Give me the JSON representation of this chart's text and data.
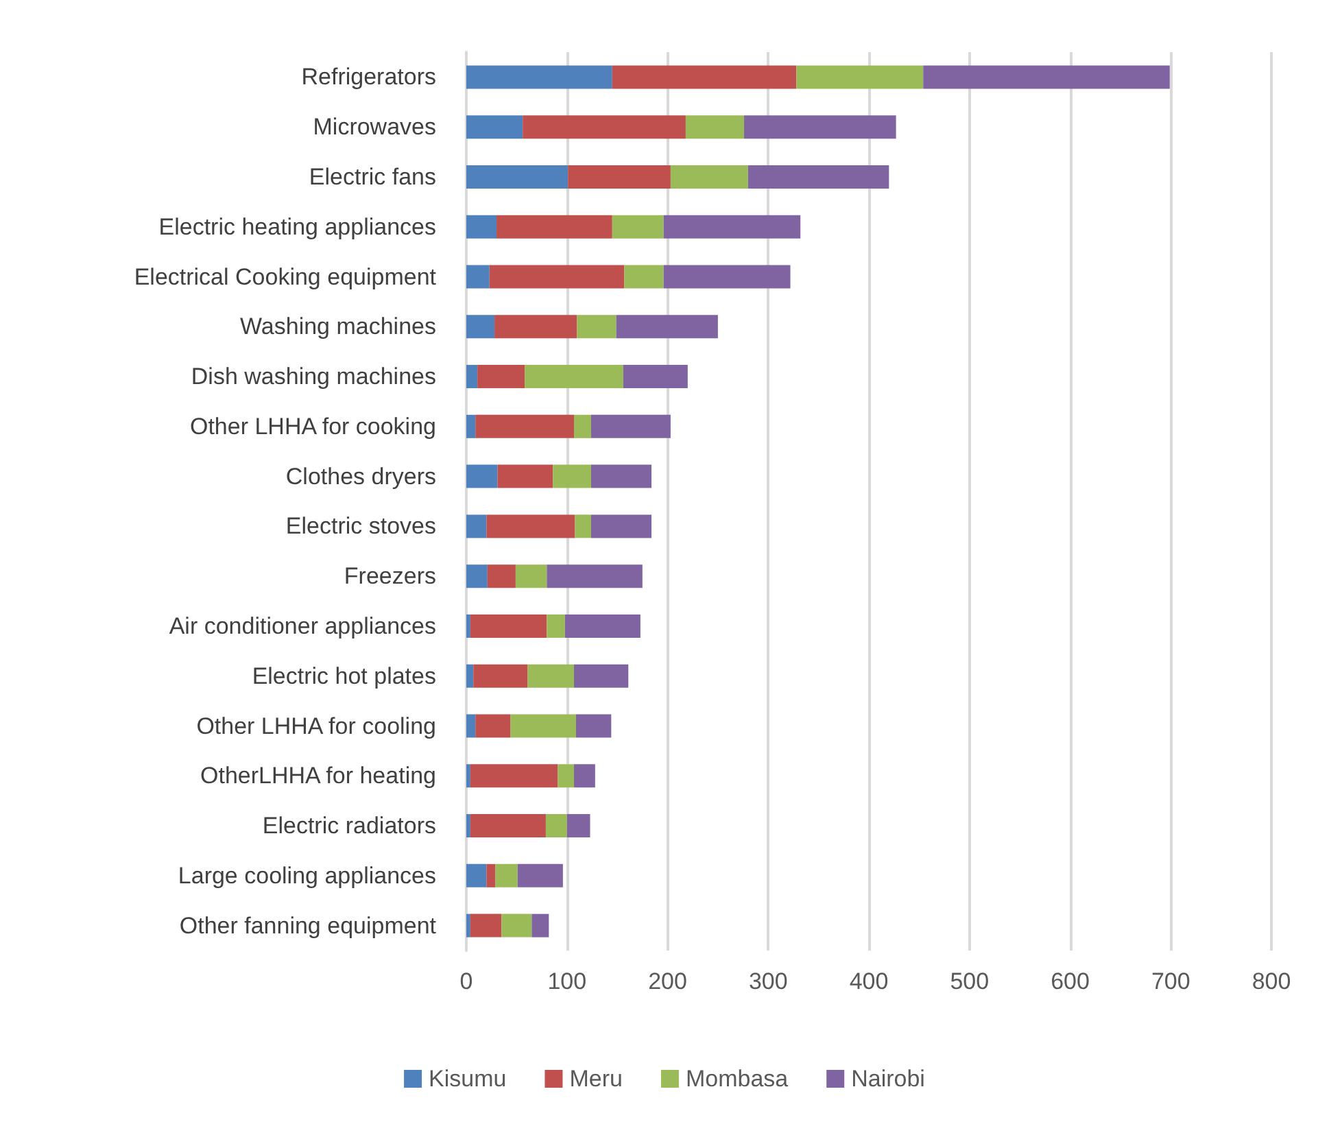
{
  "chart_data": {
    "type": "bar",
    "orientation": "horizontal",
    "stacked": true,
    "categories": [
      "Refrigerators",
      "Microwaves",
      "Electric fans",
      "Electric heating appliances",
      "Electrical Cooking equipment",
      "Washing machines",
      "Dish washing machines",
      "Other LHHA for cooking",
      "Clothes dryers",
      "Electric stoves",
      "Freezers",
      "Air conditioner appliances",
      "Electric hot plates",
      "Other LHHA for cooling",
      "OtherLHHA for heating",
      "Electric radiators",
      "Large cooling appliances",
      "Other fanning equipment"
    ],
    "series": [
      {
        "name": "Kisumu",
        "color": "#4f81bd",
        "values": [
          145,
          56,
          101,
          30,
          23,
          28,
          11,
          9,
          31,
          20,
          21,
          4,
          7,
          9,
          4,
          4,
          20,
          4
        ]
      },
      {
        "name": "Meru",
        "color": "#c0504d",
        "values": [
          183,
          162,
          102,
          115,
          134,
          82,
          47,
          98,
          55,
          88,
          28,
          76,
          54,
          35,
          87,
          75,
          9,
          31
        ]
      },
      {
        "name": "Mombasa",
        "color": "#9bbb59",
        "values": [
          126,
          58,
          77,
          51,
          39,
          39,
          98,
          17,
          38,
          16,
          31,
          18,
          46,
          65,
          16,
          21,
          22,
          30
        ]
      },
      {
        "name": "Nairobi",
        "color": "#8064a2",
        "values": [
          245,
          151,
          140,
          136,
          126,
          101,
          64,
          79,
          60,
          60,
          95,
          75,
          54,
          35,
          21,
          23,
          45,
          17
        ]
      }
    ],
    "xlim": [
      0,
      800
    ],
    "xticks": [
      0,
      100,
      200,
      300,
      400,
      500,
      600,
      700,
      800
    ],
    "grid": "x",
    "legend": "bottom"
  }
}
